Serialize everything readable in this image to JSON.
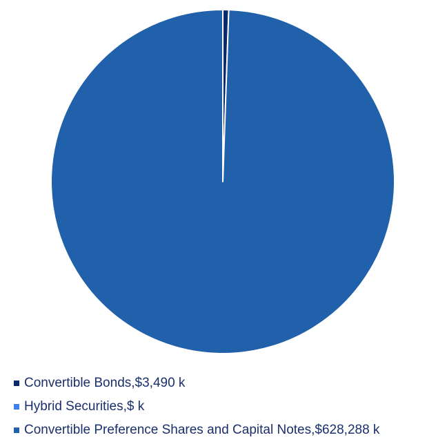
{
  "chart_data": {
    "type": "pie",
    "title": "",
    "start_angle_deg": 0,
    "direction": "clockwise",
    "slice_border_color": "#ffffff",
    "legend_position": "bottom",
    "series": [
      {
        "name": "Convertible Bonds",
        "value": 3490,
        "legend_label": "Convertible Bonds,$3,490 k",
        "color": "#0b2a6b"
      },
      {
        "name": "Hybrid Securities",
        "value": 0,
        "legend_label": "Hybrid Securities,$ k",
        "color": "#3f7ff0"
      },
      {
        "name": "Convertible Preference Shares and Capital Notes",
        "value": 628288,
        "legend_label": "Convertible Preference Shares and Capital Notes,$628,288 k",
        "color": "#2160ab"
      }
    ]
  }
}
